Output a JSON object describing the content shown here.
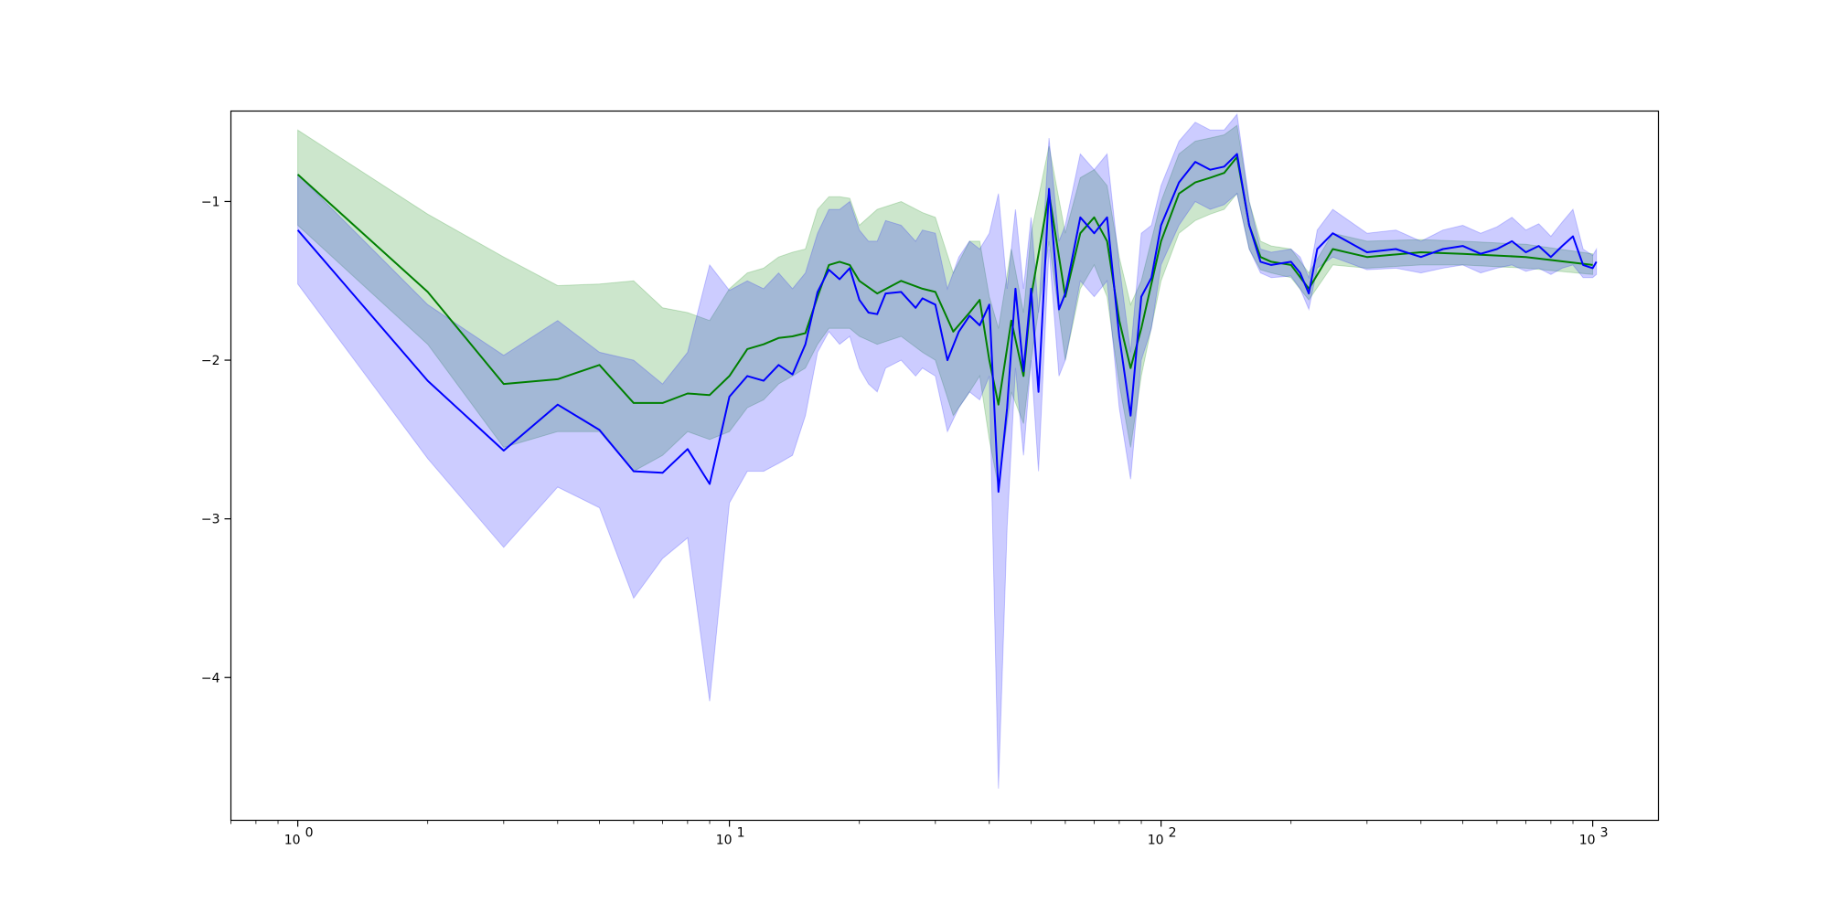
{
  "chart_data": {
    "type": "line",
    "title": "",
    "xlabel": "",
    "ylabel": "",
    "x_scale": "log",
    "xlim": [
      0.7,
      1420
    ],
    "ylim": [
      -4.9,
      -0.43
    ],
    "grid": false,
    "x_ticks": [
      {
        "value": 1,
        "base": "10",
        "exp": "0"
      },
      {
        "value": 10,
        "base": "10",
        "exp": "1"
      },
      {
        "value": 100,
        "base": "10",
        "exp": "2"
      },
      {
        "value": 1000,
        "base": "10",
        "exp": "3"
      }
    ],
    "y_ticks": [
      {
        "value": -1,
        "label": "−1"
      },
      {
        "value": -2,
        "label": "−2"
      },
      {
        "value": -3,
        "label": "−3"
      },
      {
        "value": -4,
        "label": "−4"
      }
    ],
    "series": [
      {
        "color": "#008000",
        "band_color": "#008000",
        "band_opacity": 0.2,
        "x": [
          1,
          2,
          3,
          4,
          5,
          6,
          7,
          8,
          9,
          10,
          11,
          12,
          13,
          14,
          15,
          16,
          17,
          18,
          19,
          20,
          22,
          25,
          28,
          30,
          33,
          36,
          38,
          40,
          42,
          45,
          48,
          50,
          55,
          60,
          65,
          70,
          75,
          80,
          85,
          90,
          100,
          110,
          120,
          130,
          140,
          150,
          160,
          170,
          180,
          200,
          220,
          250,
          300,
          400,
          500,
          700,
          1000
        ],
        "y": [
          -0.83,
          -1.57,
          -2.15,
          -2.12,
          -2.03,
          -2.27,
          -2.27,
          -2.21,
          -2.22,
          -2.1,
          -1.93,
          -1.9,
          -1.86,
          -1.85,
          -1.83,
          -1.6,
          -1.4,
          -1.38,
          -1.4,
          -1.5,
          -1.58,
          -1.5,
          -1.55,
          -1.57,
          -1.82,
          -1.7,
          -1.62,
          -2.0,
          -2.28,
          -1.75,
          -2.1,
          -1.6,
          -0.95,
          -1.6,
          -1.2,
          -1.1,
          -1.25,
          -1.75,
          -2.05,
          -1.8,
          -1.25,
          -0.95,
          -0.88,
          -0.85,
          -0.82,
          -0.72,
          -1.15,
          -1.35,
          -1.38,
          -1.4,
          -1.55,
          -1.3,
          -1.35,
          -1.32,
          -1.33,
          -1.35,
          -1.4
        ],
        "lower": [
          -1.15,
          -1.9,
          -2.55,
          -2.45,
          -2.45,
          -2.7,
          -2.6,
          -2.45,
          -2.5,
          -2.45,
          -2.3,
          -2.25,
          -2.15,
          -2.1,
          -2.05,
          -1.9,
          -1.8,
          -1.8,
          -1.8,
          -1.85,
          -1.9,
          -1.85,
          -1.95,
          -2.0,
          -2.35,
          -2.2,
          -2.1,
          -2.5,
          -2.8,
          -2.2,
          -2.4,
          -2.0,
          -1.25,
          -2.0,
          -1.55,
          -1.4,
          -1.6,
          -2.15,
          -2.55,
          -2.1,
          -1.5,
          -1.2,
          -1.12,
          -1.08,
          -1.05,
          -0.95,
          -1.3,
          -1.43,
          -1.45,
          -1.48,
          -1.62,
          -1.4,
          -1.42,
          -1.4,
          -1.4,
          -1.42,
          -1.46
        ],
        "upper": [
          -0.55,
          -1.08,
          -1.35,
          -1.53,
          -1.52,
          -1.5,
          -1.67,
          -1.7,
          -1.75,
          -1.55,
          -1.45,
          -1.42,
          -1.35,
          -1.32,
          -1.3,
          -1.05,
          -0.97,
          -0.97,
          -0.98,
          -1.15,
          -1.05,
          -1.0,
          -1.07,
          -1.1,
          -1.45,
          -1.25,
          -1.25,
          -1.6,
          -1.8,
          -1.3,
          -1.7,
          -1.2,
          -0.65,
          -1.2,
          -0.85,
          -0.8,
          -0.9,
          -1.35,
          -1.65,
          -1.5,
          -1.0,
          -0.7,
          -0.62,
          -0.6,
          -0.58,
          -0.52,
          -1.0,
          -1.25,
          -1.28,
          -1.3,
          -1.45,
          -1.2,
          -1.25,
          -1.24,
          -1.25,
          -1.27,
          -1.33
        ]
      },
      {
        "color": "#0000ff",
        "band_color": "#0000ff",
        "band_opacity": 0.2,
        "x": [
          1,
          2,
          3,
          4,
          5,
          6,
          7,
          8,
          9,
          10,
          11,
          12,
          13,
          14,
          15,
          16,
          17,
          18,
          19,
          20,
          21,
          22,
          23,
          25,
          27,
          28,
          30,
          32,
          34,
          36,
          38,
          40,
          42,
          44,
          46,
          48,
          50,
          52,
          55,
          58,
          60,
          65,
          70,
          75,
          80,
          85,
          90,
          95,
          100,
          110,
          120,
          130,
          140,
          150,
          160,
          170,
          180,
          200,
          210,
          220,
          230,
          250,
          300,
          350,
          400,
          450,
          500,
          550,
          600,
          650,
          700,
          750,
          800,
          850,
          900,
          950,
          1000,
          1020
        ],
        "y": [
          -1.18,
          -2.13,
          -2.57,
          -2.28,
          -2.44,
          -2.7,
          -2.71,
          -2.56,
          -2.78,
          -2.23,
          -2.1,
          -2.13,
          -2.03,
          -2.09,
          -1.9,
          -1.57,
          -1.43,
          -1.49,
          -1.42,
          -1.62,
          -1.7,
          -1.71,
          -1.58,
          -1.57,
          -1.67,
          -1.61,
          -1.65,
          -2.0,
          -1.82,
          -1.72,
          -1.78,
          -1.65,
          -2.83,
          -2.3,
          -1.55,
          -2.07,
          -1.55,
          -2.2,
          -0.92,
          -1.68,
          -1.58,
          -1.1,
          -1.2,
          -1.1,
          -1.85,
          -2.35,
          -1.6,
          -1.48,
          -1.15,
          -0.88,
          -0.75,
          -0.8,
          -0.78,
          -0.7,
          -1.15,
          -1.38,
          -1.4,
          -1.38,
          -1.45,
          -1.58,
          -1.3,
          -1.2,
          -1.32,
          -1.3,
          -1.35,
          -1.3,
          -1.28,
          -1.33,
          -1.3,
          -1.25,
          -1.32,
          -1.28,
          -1.35,
          -1.28,
          -1.22,
          -1.4,
          -1.42,
          -1.38
        ],
        "lower": [
          -1.52,
          -2.62,
          -3.18,
          -2.8,
          -2.93,
          -3.5,
          -3.25,
          -3.12,
          -4.15,
          -2.9,
          -2.7,
          -2.7,
          -2.65,
          -2.6,
          -2.35,
          -1.95,
          -1.82,
          -1.9,
          -1.85,
          -2.05,
          -2.15,
          -2.2,
          -2.05,
          -2.0,
          -2.1,
          -2.05,
          -2.1,
          -2.45,
          -2.3,
          -2.2,
          -2.25,
          -2.1,
          -4.7,
          -3.05,
          -2.05,
          -2.6,
          -2.0,
          -2.7,
          -1.3,
          -2.1,
          -2.0,
          -1.5,
          -1.6,
          -1.5,
          -2.3,
          -2.75,
          -2.0,
          -1.8,
          -1.4,
          -1.15,
          -1.0,
          -1.05,
          -1.02,
          -0.95,
          -1.3,
          -1.45,
          -1.48,
          -1.47,
          -1.55,
          -1.68,
          -1.42,
          -1.35,
          -1.43,
          -1.42,
          -1.45,
          -1.42,
          -1.4,
          -1.45,
          -1.42,
          -1.4,
          -1.44,
          -1.42,
          -1.46,
          -1.42,
          -1.4,
          -1.48,
          -1.48,
          -1.46
        ],
        "upper": [
          -0.83,
          -1.65,
          -1.97,
          -1.75,
          -1.95,
          -2.0,
          -2.15,
          -1.95,
          -1.4,
          -1.56,
          -1.5,
          -1.55,
          -1.45,
          -1.55,
          -1.45,
          -1.2,
          -1.05,
          -1.05,
          -1.0,
          -1.18,
          -1.25,
          -1.25,
          -1.12,
          -1.15,
          -1.25,
          -1.18,
          -1.2,
          -1.55,
          -1.35,
          -1.25,
          -1.3,
          -1.2,
          -0.95,
          -1.55,
          -1.05,
          -1.55,
          -1.1,
          -1.7,
          -0.6,
          -1.25,
          -1.15,
          -0.7,
          -0.8,
          -0.7,
          -1.4,
          -1.95,
          -1.2,
          -1.15,
          -0.9,
          -0.62,
          -0.5,
          -0.55,
          -0.55,
          -0.45,
          -1.0,
          -1.3,
          -1.32,
          -1.3,
          -1.35,
          -1.48,
          -1.18,
          -1.05,
          -1.2,
          -1.18,
          -1.25,
          -1.18,
          -1.15,
          -1.2,
          -1.16,
          -1.1,
          -1.18,
          -1.14,
          -1.22,
          -1.13,
          -1.05,
          -1.3,
          -1.34,
          -1.3
        ]
      }
    ]
  }
}
